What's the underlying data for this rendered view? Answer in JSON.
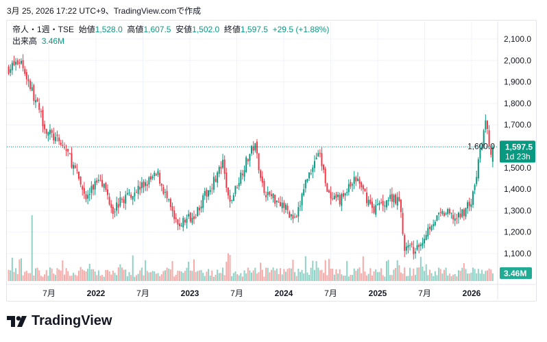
{
  "stamp": "3月 25, 2026 17:22 UTC+9、TradingView.comで作成",
  "legend": {
    "symbol": "帝人・1週・TSE",
    "open_label": "始値",
    "open": "1,528.0",
    "high_label": "高値",
    "high": "1,607.5",
    "low_label": "安値",
    "low": "1,502.0",
    "close_label": "終値",
    "close": "1,597.5",
    "change": "+29.5 (+1.88%)",
    "volume_label": "出来高",
    "volume": "3.46M"
  },
  "price_badge": {
    "price": "1,597.5",
    "countdown": "1d 23h"
  },
  "volume_badge": "3.46M",
  "logo": "TradingView",
  "colors": {
    "up": "#089981",
    "down": "#f23645",
    "up_vol": "#8fd1c5",
    "down_vol": "#f7a9a7"
  },
  "chart_data": {
    "type": "candlestick",
    "interval": "1W",
    "ylim": [
      1050,
      2150
    ],
    "y_ticks": [
      "2,100.0",
      "2,000.0",
      "1,900.0",
      "1,800.0",
      "1,700.0",
      "1,600.0",
      "1,500.0",
      "1,400.0",
      "1,300.0",
      "1,200.0",
      "1,100.0"
    ],
    "y_tick_values": [
      2100,
      2000,
      1900,
      1800,
      1700,
      1600,
      1500,
      1400,
      1300,
      1200,
      1100
    ],
    "x_ticks": [
      {
        "label": "7月",
        "t": 2021.5
      },
      {
        "label": "2022",
        "t": 2022.0
      },
      {
        "label": "7月",
        "t": 2022.5
      },
      {
        "label": "2023",
        "t": 2023.0
      },
      {
        "label": "7月",
        "t": 2023.5
      },
      {
        "label": "2024",
        "t": 2024.0
      },
      {
        "label": "7月",
        "t": 2024.5
      },
      {
        "label": "2025",
        "t": 2025.0
      },
      {
        "label": "7月",
        "t": 2025.5
      },
      {
        "label": "2026",
        "t": 2026.0
      }
    ],
    "xlim": [
      2021.05,
      2026.3
    ],
    "last_close": 1597.5,
    "price_path": [
      [
        2021.07,
        1963
      ],
      [
        2021.2,
        2000
      ],
      [
        2021.47,
        1675
      ],
      [
        2021.69,
        1580
      ],
      [
        2021.9,
        1355
      ],
      [
        2022.04,
        1467
      ],
      [
        2022.18,
        1307
      ],
      [
        2022.33,
        1370
      ],
      [
        2022.51,
        1420
      ],
      [
        2022.66,
        1467
      ],
      [
        2022.86,
        1228
      ],
      [
        2023.06,
        1290
      ],
      [
        2023.35,
        1515
      ],
      [
        2023.42,
        1325
      ],
      [
        2023.57,
        1500
      ],
      [
        2023.69,
        1610
      ],
      [
        2023.79,
        1388
      ],
      [
        2023.97,
        1340
      ],
      [
        2024.13,
        1245
      ],
      [
        2024.22,
        1420
      ],
      [
        2024.37,
        1580
      ],
      [
        2024.5,
        1340
      ],
      [
        2024.61,
        1355
      ],
      [
        2024.77,
        1450
      ],
      [
        2024.95,
        1307
      ],
      [
        2025.17,
        1370
      ],
      [
        2025.24,
        1325
      ],
      [
        2025.28,
        1130
      ],
      [
        2025.42,
        1115
      ],
      [
        2025.57,
        1245
      ],
      [
        2025.72,
        1290
      ],
      [
        2025.85,
        1260
      ],
      [
        2026.01,
        1355
      ],
      [
        2026.08,
        1547
      ],
      [
        2026.15,
        1707
      ],
      [
        2026.21,
        1547
      ],
      [
        2026.23,
        1597.5
      ]
    ]
  }
}
